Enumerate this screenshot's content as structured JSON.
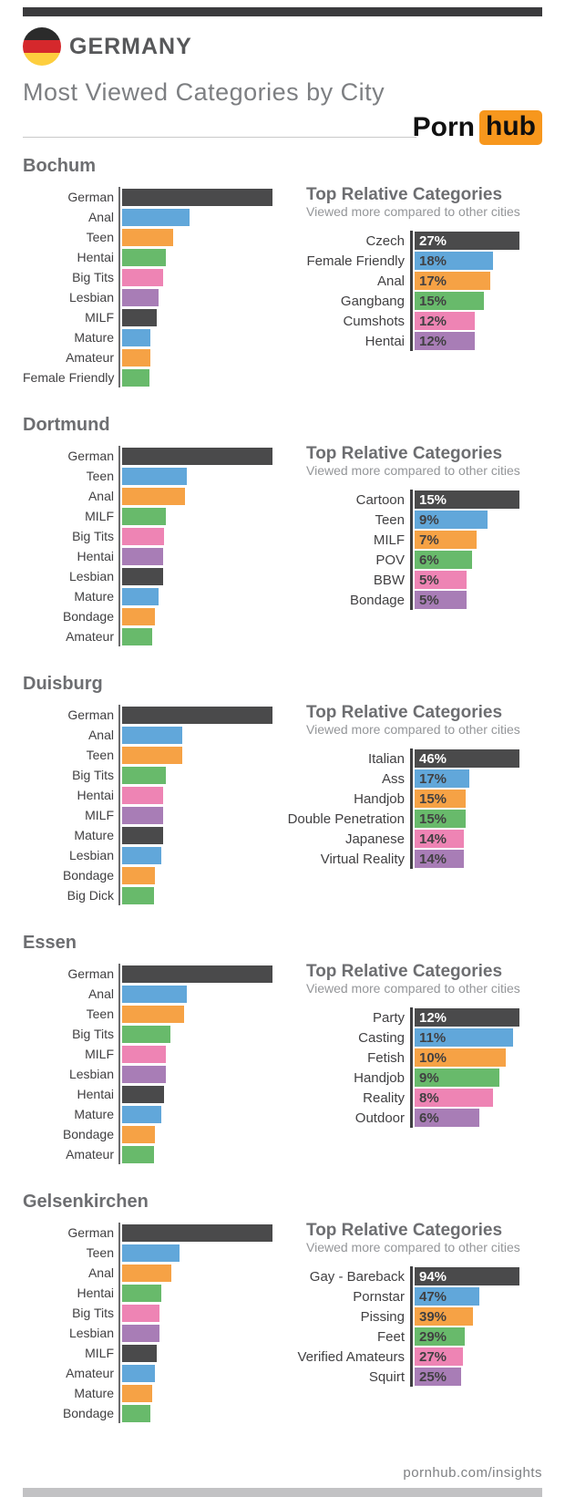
{
  "page": {
    "country": "GERMANY",
    "title": "Most Viewed Categories by City",
    "brand": {
      "part1": "Porn",
      "part2": "hub"
    },
    "footer_link": "pornhub.com/insights"
  },
  "relative_header": {
    "title": "Top Relative Categories",
    "subtitle": "Viewed more compared to other cities"
  },
  "palette": {
    "bar_colors": [
      "#4a4a4b",
      "#61a7da",
      "#f6a245",
      "#68ba6b",
      "#ee84b4",
      "#a87db6"
    ],
    "brand_orange": "#f7971d",
    "top_bar": "#3b3b3d",
    "bottom_bar": "#c2c2c4",
    "flag_black": "#2b2b2b",
    "flag_red": "#d5282c",
    "flag_gold": "#fdce3e"
  },
  "chart_data": [
    {
      "type": "bar",
      "city": "Bochum",
      "most_viewed": {
        "title": "Most Viewed Categories",
        "items": [
          {
            "label": "German",
            "length_pct": 100
          },
          {
            "label": "Anal",
            "length_pct": 45
          },
          {
            "label": "Teen",
            "length_pct": 34
          },
          {
            "label": "Hentai",
            "length_pct": 29
          },
          {
            "label": "Big Tits",
            "length_pct": 27
          },
          {
            "label": "Lesbian",
            "length_pct": 24
          },
          {
            "label": "MILF",
            "length_pct": 23
          },
          {
            "label": "Mature",
            "length_pct": 19
          },
          {
            "label": "Amateur",
            "length_pct": 19
          },
          {
            "label": "Female Friendly",
            "length_pct": 18
          }
        ]
      },
      "top_relative": {
        "items": [
          {
            "label": "Czech",
            "value_pct": 27,
            "value_display": "27%"
          },
          {
            "label": "Female Friendly",
            "value_pct": 18,
            "value_display": "18%"
          },
          {
            "label": "Anal",
            "value_pct": 17,
            "value_display": "17%"
          },
          {
            "label": "Gangbang",
            "value_pct": 15,
            "value_display": "15%"
          },
          {
            "label": "Cumshots",
            "value_pct": 12,
            "value_display": "12%"
          },
          {
            "label": "Hentai",
            "value_pct": 12,
            "value_display": "12%"
          }
        ]
      }
    },
    {
      "type": "bar",
      "city": "Dortmund",
      "most_viewed": {
        "title": "Most Viewed Categories",
        "items": [
          {
            "label": "German",
            "length_pct": 100
          },
          {
            "label": "Teen",
            "length_pct": 43
          },
          {
            "label": "Anal",
            "length_pct": 42
          },
          {
            "label": "MILF",
            "length_pct": 29
          },
          {
            "label": "Big Tits",
            "length_pct": 28
          },
          {
            "label": "Hentai",
            "length_pct": 27
          },
          {
            "label": "Lesbian",
            "length_pct": 27
          },
          {
            "label": "Mature",
            "length_pct": 24
          },
          {
            "label": "Bondage",
            "length_pct": 22
          },
          {
            "label": "Amateur",
            "length_pct": 20
          }
        ]
      },
      "top_relative": {
        "items": [
          {
            "label": "Cartoon",
            "value_pct": 15,
            "value_display": "15%"
          },
          {
            "label": "Teen",
            "value_pct": 9,
            "value_display": "9%"
          },
          {
            "label": "MILF",
            "value_pct": 7,
            "value_display": "7%"
          },
          {
            "label": "POV",
            "value_pct": 6,
            "value_display": "6%"
          },
          {
            "label": "BBW",
            "value_pct": 5,
            "value_display": "5%"
          },
          {
            "label": "Bondage",
            "value_pct": 5,
            "value_display": "5%"
          }
        ]
      }
    },
    {
      "type": "bar",
      "city": "Duisburg",
      "most_viewed": {
        "title": "Most Viewed Categories",
        "items": [
          {
            "label": "German",
            "length_pct": 100
          },
          {
            "label": "Anal",
            "length_pct": 40
          },
          {
            "label": "Teen",
            "length_pct": 40
          },
          {
            "label": "Big Tits",
            "length_pct": 29
          },
          {
            "label": "Hentai",
            "length_pct": 27
          },
          {
            "label": "MILF",
            "length_pct": 27
          },
          {
            "label": "Mature",
            "length_pct": 27
          },
          {
            "label": "Lesbian",
            "length_pct": 26
          },
          {
            "label": "Bondage",
            "length_pct": 22
          },
          {
            "label": "Big Dick",
            "length_pct": 21
          }
        ]
      },
      "top_relative": {
        "items": [
          {
            "label": "Italian",
            "value_pct": 46,
            "value_display": "46%"
          },
          {
            "label": "Ass",
            "value_pct": 17,
            "value_display": "17%"
          },
          {
            "label": "Handjob",
            "value_pct": 15,
            "value_display": "15%"
          },
          {
            "label": "Double Penetration",
            "value_pct": 15,
            "value_display": "15%"
          },
          {
            "label": "Japanese",
            "value_pct": 14,
            "value_display": "14%"
          },
          {
            "label": "Virtual Reality",
            "value_pct": 14,
            "value_display": "14%"
          }
        ]
      }
    },
    {
      "type": "bar",
      "city": "Essen",
      "most_viewed": {
        "title": "Most Viewed Categories",
        "items": [
          {
            "label": "German",
            "length_pct": 100
          },
          {
            "label": "Anal",
            "length_pct": 43
          },
          {
            "label": "Teen",
            "length_pct": 41
          },
          {
            "label": "Big Tits",
            "length_pct": 32
          },
          {
            "label": "MILF",
            "length_pct": 29
          },
          {
            "label": "Lesbian",
            "length_pct": 29
          },
          {
            "label": "Hentai",
            "length_pct": 28
          },
          {
            "label": "Mature",
            "length_pct": 26
          },
          {
            "label": "Bondage",
            "length_pct": 22
          },
          {
            "label": "Amateur",
            "length_pct": 21
          }
        ]
      },
      "top_relative": {
        "items": [
          {
            "label": "Party",
            "value_pct": 12,
            "value_display": "12%"
          },
          {
            "label": "Casting",
            "value_pct": 11,
            "value_display": "11%"
          },
          {
            "label": "Fetish",
            "value_pct": 10,
            "value_display": "10%"
          },
          {
            "label": "Handjob",
            "value_pct": 9,
            "value_display": "9%"
          },
          {
            "label": "Reality",
            "value_pct": 8,
            "value_display": "8%"
          },
          {
            "label": "Outdoor",
            "value_pct": 6,
            "value_display": "6%"
          }
        ]
      }
    },
    {
      "type": "bar",
      "city": "Gelsenkirchen",
      "most_viewed": {
        "title": "Most Viewed Categories",
        "items": [
          {
            "label": "German",
            "length_pct": 100
          },
          {
            "label": "Teen",
            "length_pct": 38
          },
          {
            "label": "Anal",
            "length_pct": 33
          },
          {
            "label": "Hentai",
            "length_pct": 26
          },
          {
            "label": "Big Tits",
            "length_pct": 25
          },
          {
            "label": "Lesbian",
            "length_pct": 25
          },
          {
            "label": "MILF",
            "length_pct": 23
          },
          {
            "label": "Amateur",
            "length_pct": 22
          },
          {
            "label": "Mature",
            "length_pct": 20
          },
          {
            "label": "Bondage",
            "length_pct": 19
          }
        ]
      },
      "top_relative": {
        "items": [
          {
            "label": "Gay - Bareback",
            "value_pct": 94,
            "value_display": "94%"
          },
          {
            "label": "Pornstar",
            "value_pct": 47,
            "value_display": "47%"
          },
          {
            "label": "Pissing",
            "value_pct": 39,
            "value_display": "39%"
          },
          {
            "label": "Feet",
            "value_pct": 29,
            "value_display": "29%"
          },
          {
            "label": "Verified Amateurs",
            "value_pct": 27,
            "value_display": "27%"
          },
          {
            "label": "Squirt",
            "value_pct": 25,
            "value_display": "25%"
          }
        ]
      }
    }
  ]
}
